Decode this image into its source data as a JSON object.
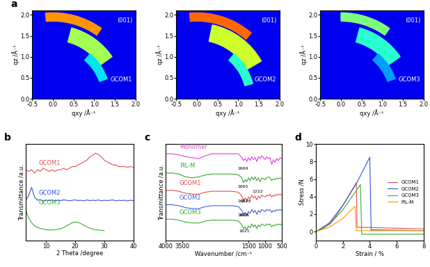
{
  "chart_data": [
    {
      "type": "image",
      "panel_label": "a",
      "label": "GCOM1",
      "peak_label": "(001)",
      "x_label": "qxy /Å⁻¹",
      "y_label": "qz /Å⁻¹",
      "xlim": [
        -0.5,
        2.0
      ],
      "ylim": [
        0,
        2.1
      ],
      "xticks": [
        {
          "value": -0.5,
          "label": "-0.5"
        },
        {
          "value": 0,
          "label": "0.0"
        },
        0.5,
        {
          "value": 1,
          "label": "1.0"
        },
        1.5,
        {
          "value": 2,
          "label": "2.0"
        }
      ],
      "yticks": [
        {
          "value": 0,
          "label": "0.0"
        },
        0.5,
        {
          "value": 1,
          "label": "1.0"
        },
        1.5,
        {
          "value": 2,
          "label": "2.0"
        }
      ],
      "rings": [
        {
          "q": [
            1.85,
            2.05
          ],
          "angle": [
            55,
            95
          ],
          "intensity": 0.75
        },
        {
          "q": [
            1.4,
            1.75
          ],
          "angle": [
            35,
            75
          ],
          "intensity": 0.55
        },
        {
          "q": [
            1.2,
            1.4
          ],
          "angle": [
            20,
            50
          ],
          "intensity": 0.35
        }
      ]
    },
    {
      "type": "image",
      "label": "GCOM2",
      "peak_label": "(001)",
      "x_label": "qxy /Å⁻¹",
      "y_label": "qz /Å⁻¹",
      "xlim": [
        -0.5,
        2.0
      ],
      "ylim": [
        0,
        2.1
      ],
      "xticks": [
        {
          "value": -0.5,
          "label": "-0.5"
        },
        {
          "value": 0,
          "label": "0.0"
        },
        0.5,
        {
          "value": 1,
          "label": "1.0"
        },
        1.5,
        {
          "value": 2,
          "label": "2.0"
        }
      ],
      "yticks": [
        {
          "value": 0,
          "label": "0.0"
        },
        0.5,
        {
          "value": 1,
          "label": "1.0"
        },
        1.5,
        {
          "value": 2,
          "label": "2.0"
        }
      ],
      "rings": [
        {
          "q": [
            1.85,
            2.05
          ],
          "angle": [
            50,
            95
          ],
          "intensity": 0.8
        },
        {
          "q": [
            1.4,
            1.8
          ],
          "angle": [
            30,
            78
          ],
          "intensity": 0.6
        },
        {
          "q": [
            1.2,
            1.4
          ],
          "angle": [
            15,
            50
          ],
          "intensity": 0.4
        }
      ]
    },
    {
      "type": "image",
      "label": "GCOM3",
      "peak_label": "(001)",
      "x_label": "qxy /Å⁻¹",
      "y_label": "qz /Å⁻¹",
      "xlim": [
        -0.5,
        2.0
      ],
      "ylim": [
        0,
        2.1
      ],
      "xticks": [
        {
          "value": -0.5,
          "label": "-0.5"
        },
        {
          "value": 0,
          "label": "0.0"
        },
        0.5,
        {
          "value": 1,
          "label": "1.0"
        },
        1.5,
        {
          "value": 2,
          "label": "2.0"
        }
      ],
      "yticks": [
        {
          "value": 0,
          "label": "0.0"
        },
        0.5,
        {
          "value": 1,
          "label": "1.0"
        },
        1.5,
        {
          "value": 2,
          "label": "2.0"
        }
      ],
      "rings": [
        {
          "q": [
            1.85,
            2.05
          ],
          "angle": [
            55,
            90
          ],
          "intensity": 0.5
        },
        {
          "q": [
            1.4,
            1.75
          ],
          "angle": [
            35,
            75
          ],
          "intensity": 0.4
        },
        {
          "q": [
            1.2,
            1.4
          ],
          "angle": [
            20,
            50
          ],
          "intensity": 0.28
        }
      ]
    },
    {
      "type": "line",
      "panel_label": "b",
      "x_label": "2 Theta /degree",
      "y_label": "Transmittance /a.u.",
      "tick_labels": "x",
      "xlim": [
        3,
        40
      ],
      "ylim": [
        0,
        3
      ],
      "xticks": [
        10,
        20,
        30,
        40
      ],
      "x": [
        3,
        4,
        5,
        6,
        7,
        8,
        9,
        10,
        11,
        12,
        13,
        14,
        15,
        16,
        17,
        18,
        19,
        20,
        21,
        22,
        23,
        24,
        25,
        26,
        27,
        28,
        29,
        30,
        31,
        32,
        33,
        34,
        35,
        36,
        37,
        38,
        39,
        40
      ],
      "series": [
        {
          "name": "GCOM1",
          "color": "#e05050",
          "values": [
            2.2,
            2.15,
            2.2,
            2.1,
            2.2,
            2.15,
            2.25,
            2.2,
            2.15,
            2.2,
            2.15,
            2.2,
            2.2,
            2.25,
            2.2,
            2.25,
            2.3,
            2.3,
            2.35,
            2.4,
            2.45,
            2.5,
            2.6,
            2.65,
            2.72,
            2.68,
            2.6,
            2.5,
            2.45,
            2.4,
            2.35,
            2.35,
            2.3,
            2.3,
            2.3,
            2.28,
            2.3,
            2.28
          ]
        },
        {
          "name": "GCOM2",
          "color": "#3050e0",
          "values": [
            1.25,
            1.4,
            1.65,
            1.35,
            1.25,
            1.27,
            1.22,
            1.25,
            1.24,
            1.26,
            1.23,
            1.25,
            1.24,
            1.26,
            1.25,
            1.23,
            1.25,
            1.26,
            1.24,
            1.25,
            1.23,
            1.26,
            1.24,
            1.25,
            1.24,
            1.26,
            1.23,
            1.25,
            1.24,
            1.25,
            1.26,
            1.23,
            1.25,
            1.24,
            1.25,
            1.23,
            1.25,
            1.24
          ]
        },
        {
          "name": "GCOM3",
          "color": "#30b030",
          "values": [
            0.95,
            0.7,
            0.55,
            0.45,
            0.4,
            0.37,
            0.35,
            0.33,
            0.32,
            0.32,
            0.33,
            0.34,
            0.36,
            0.4,
            0.45,
            0.5,
            0.55,
            0.57,
            0.56,
            0.52,
            0.47,
            0.42,
            0.38,
            0.35,
            0.33,
            0.32,
            0.31,
            0.3,
            null,
            null,
            null,
            null,
            null,
            null,
            null,
            null,
            null,
            null
          ]
        }
      ]
    },
    {
      "type": "line",
      "panel_label": "c",
      "x_label": "Wavenumber /cm⁻¹",
      "y_label": "Transmittance /a.u.",
      "tick_labels": "x",
      "xlim": [
        4000,
        500
      ],
      "ylim": [
        0,
        10
      ],
      "xticks": [
        4000,
        3500,
        1500,
        1000,
        500
      ],
      "x": [
        4000,
        3800,
        3600,
        3400,
        3200,
        3000,
        2800,
        2600,
        2400,
        2200,
        2000,
        1800,
        1700,
        1650,
        1600,
        1550,
        1500,
        1450,
        1400,
        1350,
        1300,
        1250,
        1200,
        1150,
        1100,
        1050,
        1000,
        950,
        900,
        850,
        800,
        750,
        700,
        650,
        600,
        550,
        500
      ],
      "series": [
        {
          "name": "Monomer",
          "color": "#e040e0",
          "values": [
            9.0,
            9.0,
            8.9,
            8.7,
            8.6,
            8.5,
            8.8,
            9.0,
            9.0,
            9.0,
            9.0,
            9.0,
            8.6,
            8.3,
            8.5,
            8.2,
            8.6,
            8.3,
            8.7,
            8.4,
            8.6,
            8.2,
            8.7,
            8.5,
            8.8,
            8.6,
            8.4,
            8.7,
            8.5,
            8.6,
            7.9,
            8.4,
            8.1,
            8.5,
            8.3,
            8.6,
            8.5
          ]
        },
        {
          "name": "PIL-M",
          "color": "#33aa33",
          "values": [
            7.0,
            7.0,
            6.9,
            6.6,
            6.5,
            6.6,
            6.8,
            6.9,
            6.9,
            6.9,
            6.9,
            6.8,
            6.5,
            6.0,
            6.3,
            6.1,
            6.5,
            6.2,
            6.6,
            6.3,
            6.6,
            6.2,
            6.5,
            6.1,
            6.5,
            6.4,
            6.3,
            6.5,
            6.6,
            6.5,
            6.2,
            6.4,
            6.3,
            6.5,
            6.4,
            6.5,
            6.4
          ]
        },
        {
          "name": "GCOM1",
          "color": "#e05050",
          "values": [
            5.2,
            5.2,
            5.1,
            4.9,
            4.8,
            4.8,
            5.0,
            5.1,
            5.1,
            5.1,
            5.1,
            5.0,
            4.6,
            4.2,
            4.4,
            4.1,
            4.5,
            4.3,
            4.7,
            4.4,
            4.6,
            4.2,
            4.6,
            4.4,
            4.7,
            4.6,
            4.5,
            4.7,
            4.6,
            4.8,
            4.5,
            4.7,
            4.6,
            4.8,
            4.7,
            4.8,
            4.7
          ]
        },
        {
          "name": "GCOM2",
          "color": "#4060e0",
          "values": [
            3.7,
            3.7,
            3.6,
            3.4,
            3.3,
            3.3,
            3.5,
            3.6,
            3.6,
            3.6,
            3.6,
            3.5,
            3.1,
            2.7,
            2.9,
            2.6,
            3.0,
            2.8,
            3.2,
            2.9,
            3.1,
            2.7,
            3.1,
            2.9,
            3.2,
            3.1,
            3.0,
            3.2,
            3.1,
            3.2,
            2.9,
            3.1,
            3.0,
            3.2,
            3.1,
            3.2,
            3.1
          ]
        },
        {
          "name": "GCOM3",
          "color": "#30b030",
          "values": [
            2.2,
            2.2,
            2.1,
            1.9,
            1.8,
            1.8,
            2.0,
            2.1,
            2.1,
            2.1,
            2.1,
            2.0,
            1.6,
            1.2,
            1.4,
            1.1,
            1.5,
            1.3,
            1.7,
            1.4,
            1.6,
            1.2,
            1.6,
            1.4,
            1.7,
            1.6,
            1.5,
            1.7,
            1.6,
            1.7,
            1.4,
            1.6,
            1.5,
            1.7,
            1.6,
            1.7,
            1.6
          ]
        }
      ],
      "annotations": [
        {
          "text": "1669",
          "x": 1669,
          "y": 7.3
        },
        {
          "text": "1665",
          "x": 1665,
          "y": 5.4
        },
        {
          "text": "1578",
          "x": 1578,
          "y": 3.85
        },
        {
          "text": "1222",
          "x": 1222,
          "y": 4.9
        },
        {
          "text": "1662",
          "x": 1662,
          "y": 3.85
        },
        {
          "text": "1621",
          "x": 1621,
          "y": 2.4
        },
        {
          "text": "1665",
          "x": 1665,
          "y": 2.4
        },
        {
          "text": "1621",
          "x": 1621,
          "y": 0.75
        }
      ]
    },
    {
      "type": "line",
      "panel_label": "d",
      "x_label": "Strain / %",
      "y_label": "Stress /N",
      "xlim": [
        0,
        8
      ],
      "ylim": [
        -1,
        10
      ],
      "xticks": [
        0,
        2,
        4,
        6,
        8
      ],
      "yticks": [
        0,
        2,
        4,
        6,
        8,
        10
      ],
      "legend": "center right",
      "series": [
        {
          "name": "GCOM1",
          "color": "#e05050",
          "x": [
            0,
            0.5,
            1,
            1.5,
            2,
            2.5,
            3,
            3.05,
            8
          ],
          "values": [
            0,
            0.3,
            0.9,
            1.8,
            3.0,
            4.3,
            5.6,
            0.5,
            0.3
          ]
        },
        {
          "name": "GCOM2",
          "color": "#3050e0",
          "x": [
            0,
            1,
            2,
            3,
            3.5,
            4,
            4.1,
            8
          ],
          "values": [
            0,
            1.0,
            3.0,
            5.5,
            7.0,
            8.5,
            0.2,
            0.1
          ]
        },
        {
          "name": "GCOM3",
          "color": "#30b030",
          "x": [
            0,
            1,
            2,
            3,
            3.3,
            3.4,
            8
          ],
          "values": [
            0,
            0.8,
            2.5,
            4.7,
            5.4,
            -0.3,
            -0.3
          ]
        },
        {
          "name": "PIL-M",
          "color": "#ff9900",
          "x": [
            0,
            1,
            2,
            2.9,
            3.0,
            8
          ],
          "values": [
            0,
            0.5,
            1.5,
            2.9,
            0.1,
            0.1
          ]
        }
      ]
    }
  ]
}
